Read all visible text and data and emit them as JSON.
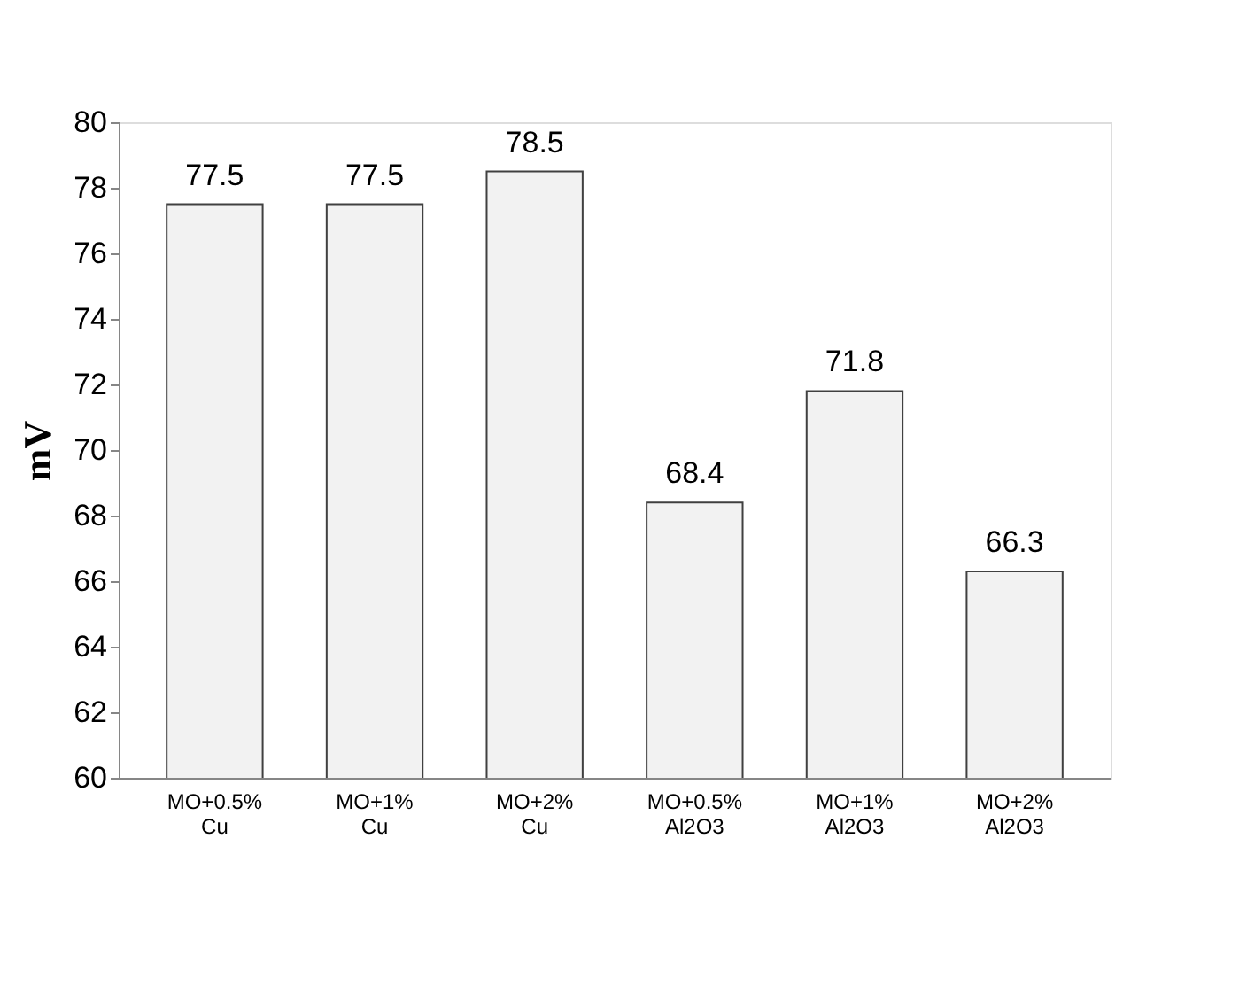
{
  "chart_data": {
    "type": "bar",
    "ylabel": "mV",
    "categories": [
      "MO+0.5% Cu",
      "MO+1% Cu",
      "MO+2% Cu",
      "MO+0.5% Al2O3",
      "MO+1% Al2O3",
      "MO+2% Al2O3"
    ],
    "values": [
      77.5,
      77.5,
      78.5,
      68.4,
      71.8,
      66.3
    ],
    "color": "#f2f2f2",
    "ylim": [
      60,
      80
    ],
    "yticks": [
      60,
      62,
      64,
      66,
      68,
      70,
      72,
      74,
      76,
      78,
      80
    ],
    "grid": false,
    "data_labels": true
  }
}
